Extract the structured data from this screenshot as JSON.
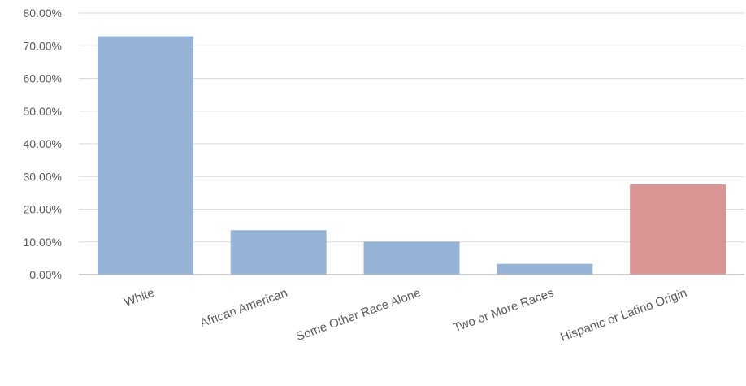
{
  "chart_data": {
    "type": "bar",
    "title": "",
    "xlabel": "",
    "ylabel": "",
    "categories": [
      "White",
      "African American",
      "Some Other Race Alone",
      "Two or More Races",
      "Hispanic or Latino Origin"
    ],
    "values": [
      72.9,
      13.6,
      10.1,
      3.3,
      27.6
    ],
    "value_unit": "percent",
    "ylim": [
      0,
      80
    ],
    "y_ticks": [
      "0.00%",
      "10.00%",
      "20.00%",
      "30.00%",
      "40.00%",
      "50.00%",
      "60.00%",
      "70.00%",
      "80.00%"
    ],
    "grid": true,
    "legend": "none",
    "colors": {
      "default_bar": "#95b3d7",
      "highlight_bar": "#d99594",
      "gridline": "#d9d9d9",
      "axis": "#bfbfbf",
      "text": "#595959"
    },
    "bar_colors": [
      "#95b3d7",
      "#95b3d7",
      "#95b3d7",
      "#95b3d7",
      "#d99594"
    ]
  }
}
